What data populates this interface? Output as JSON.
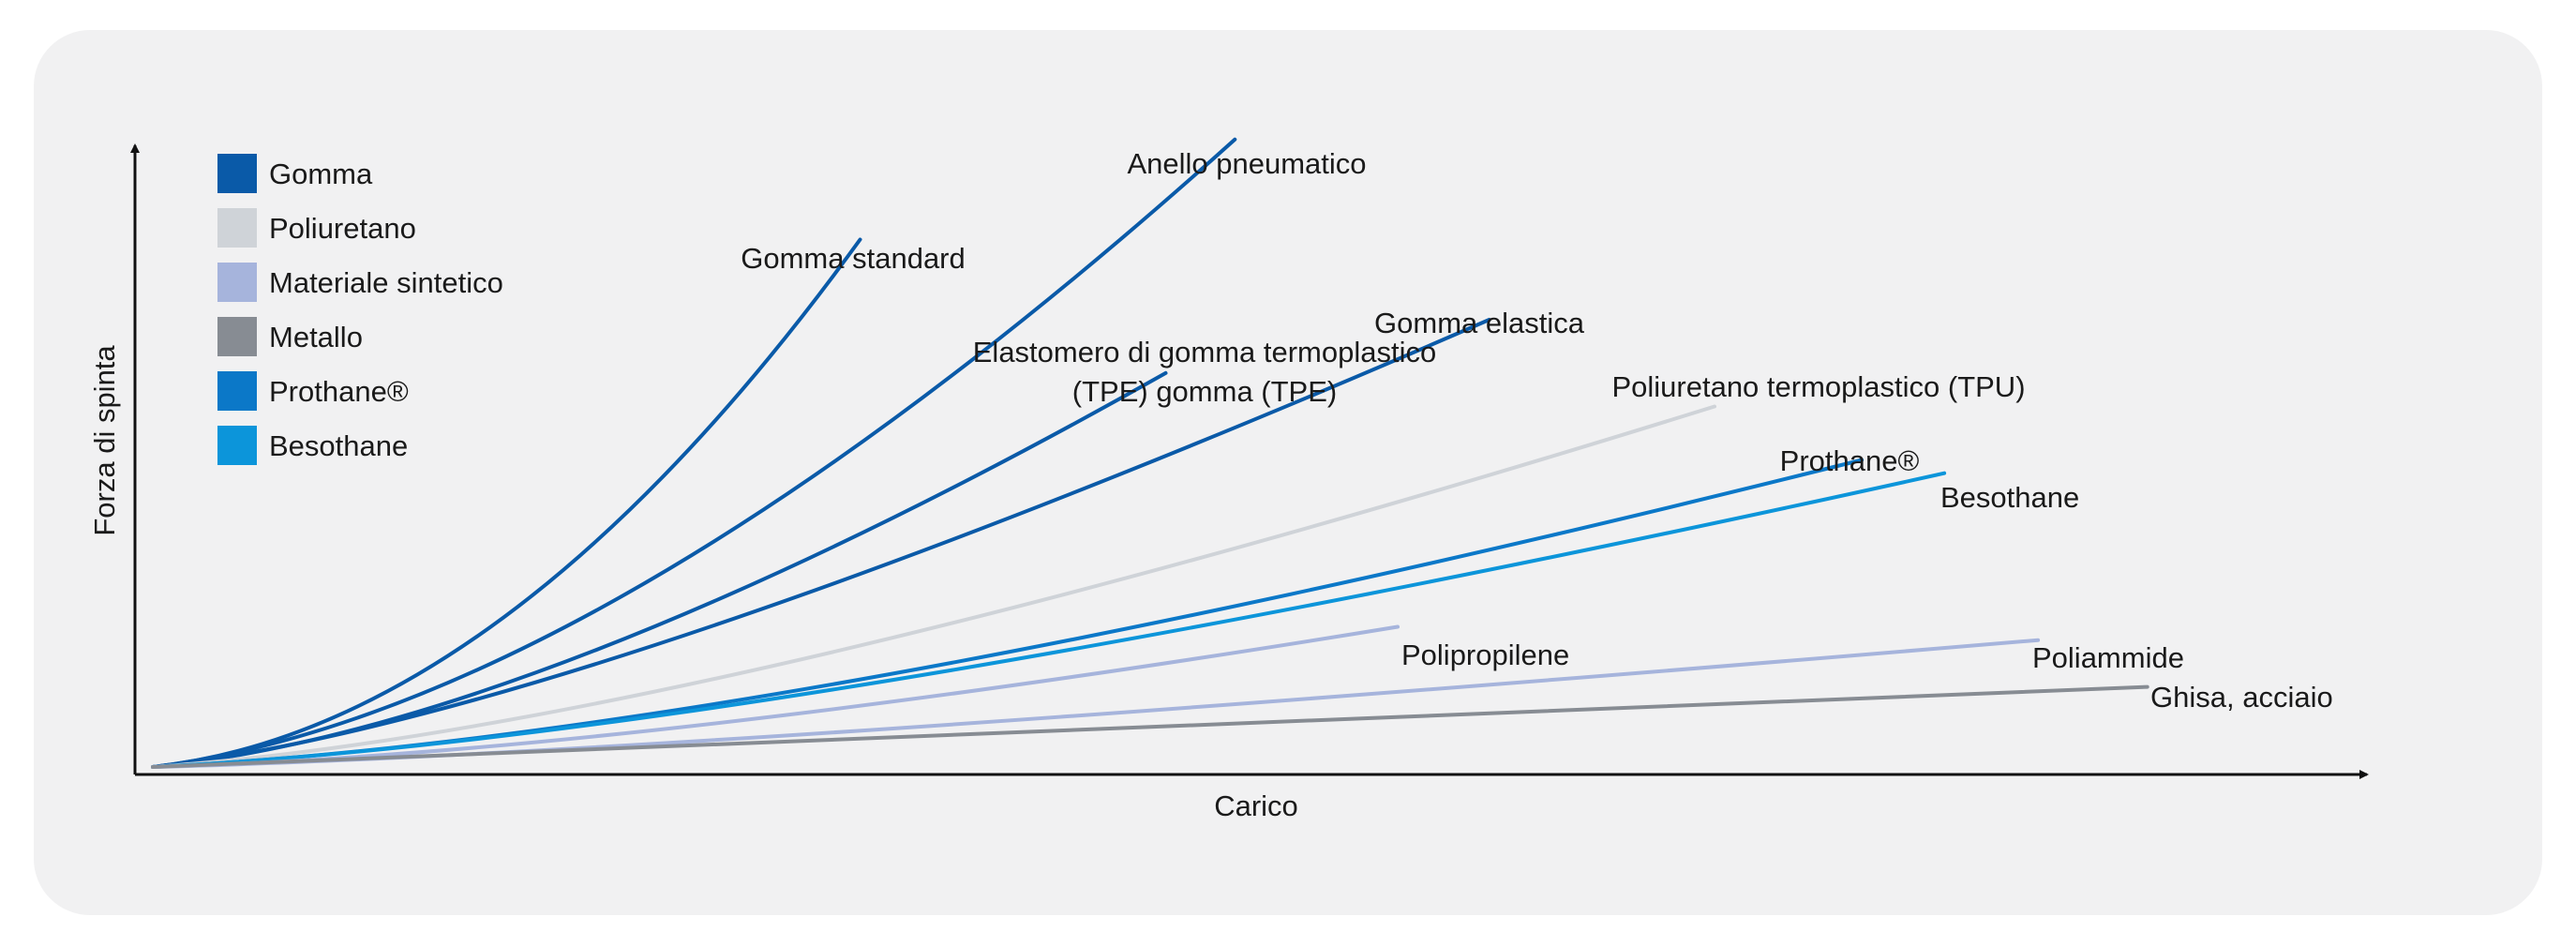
{
  "chart_data": {
    "type": "line",
    "xlabel": "Carico",
    "ylabel": "Forza di spinta",
    "grid": false,
    "legend_position": "top-left",
    "legend": [
      {
        "label": "Gomma",
        "color": "#0a5aa8"
      },
      {
        "label": "Poliuretano",
        "color": "#cfd3d8"
      },
      {
        "label": "Materiale sintetico",
        "color": "#a6b4dc"
      },
      {
        "label": "Metallo",
        "color": "#878c93"
      },
      {
        "label": "Prothane®",
        "color": "#0b78c8"
      },
      {
        "label": "Besothane",
        "color": "#0c95da"
      }
    ],
    "series": [
      {
        "name": "Gomma standard",
        "color": "#0a5aa8",
        "end": [
          0.317,
          0.79
        ],
        "curve": 2.0
      },
      {
        "name": "Anello pneumatico",
        "color": "#0a5aa8",
        "end": [
          0.485,
          0.94
        ],
        "curve": 1.7
      },
      {
        "name": "Elastomero di gomma termoplastico (TPE) gomma (TPE)",
        "color": "#0a5aa8",
        "end": [
          0.454,
          0.59
        ],
        "curve": 1.6
      },
      {
        "name": "Gomma elastica",
        "color": "#0a5aa8",
        "end": [
          0.599,
          0.67
        ],
        "curve": 1.45
      },
      {
        "name": "Poliuretano termoplastico (TPU)",
        "color": "#cfd3d8",
        "end": [
          0.7,
          0.54
        ],
        "curve": 1.5
      },
      {
        "name": "Prothane®",
        "color": "#0b78c8",
        "end": [
          0.766,
          0.46
        ],
        "curve": 1.55
      },
      {
        "name": "Besothane",
        "color": "#0c95da",
        "end": [
          0.803,
          0.44
        ],
        "curve": 1.5
      },
      {
        "name": "Polipropilene",
        "color": "#a6b4dc",
        "end": [
          0.558,
          0.21
        ],
        "curve": 1.6
      },
      {
        "name": "Poliammide",
        "color": "#a6b4dc",
        "end": [
          0.845,
          0.19
        ],
        "curve": 1.4
      },
      {
        "name": "Ghisa, acciaio",
        "color": "#878c93",
        "end": [
          0.894,
          0.12
        ],
        "curve": 1.1
      }
    ],
    "annotations": [
      {
        "text": "Gomma standard"
      },
      {
        "text": "Anello pneumatico"
      },
      {
        "text": "Elastomero di gomma termoplastico"
      },
      {
        "text": "(TPE) gomma (TPE)"
      },
      {
        "text": "Gomma elastica"
      },
      {
        "text": "Poliuretano termoplastico (TPU)"
      },
      {
        "text": "Prothane®"
      },
      {
        "text": "Besothane"
      },
      {
        "text": "Polipropilene"
      },
      {
        "text": "Poliammide"
      },
      {
        "text": "Ghisa, acciaio"
      }
    ]
  }
}
